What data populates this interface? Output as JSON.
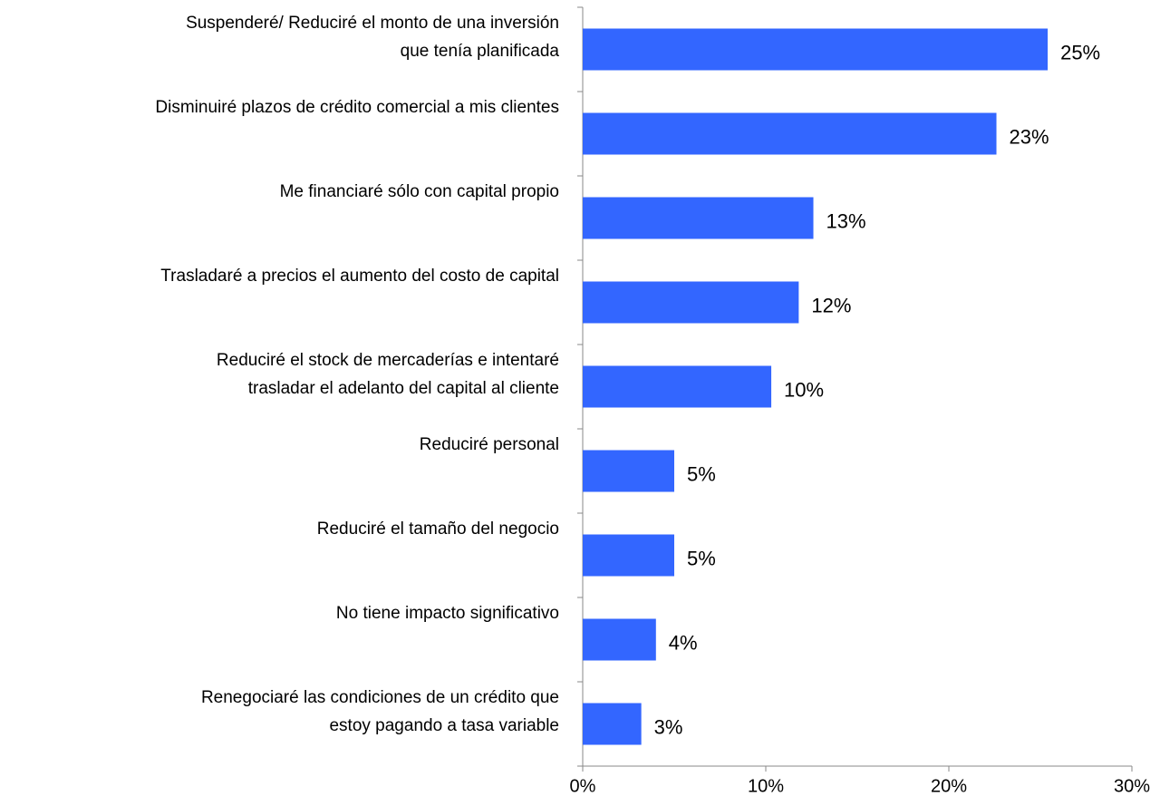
{
  "chart_data": {
    "type": "bar",
    "orientation": "horizontal",
    "categories": [
      "Suspenderé/ Reduciré el monto de una inversión\nque tenía planificada",
      "Disminuiré plazos de crédito comercial a mis clientes",
      "Me financiaré sólo con capital propio",
      "Trasladaré a precios el aumento  del costo de capital",
      "Reduciré el stock de mercaderías e intentaré\ntrasladar el adelanto del capital al cliente",
      "Reduciré personal",
      "Reduciré el tamaño del negocio",
      "No tiene impacto significativo",
      "Renegociaré las condiciones de un crédito que\nestoy pagando  a tasa variable"
    ],
    "values": [
      25.4,
      22.6,
      12.6,
      11.8,
      10.3,
      5.0,
      5.0,
      4.0,
      3.2
    ],
    "value_labels": [
      "25%",
      "23%",
      "13%",
      "12%",
      "10%",
      "5%",
      "5%",
      "4%",
      "3%"
    ],
    "color": "#3366ff",
    "xlim": [
      0,
      30
    ],
    "xticks": [
      {
        "value": 0,
        "label": "0%"
      },
      {
        "value": 10,
        "label": "10%"
      },
      {
        "value": 20,
        "label": "20%"
      },
      {
        "value": 30,
        "label": "30%"
      }
    ],
    "grid": false
  }
}
